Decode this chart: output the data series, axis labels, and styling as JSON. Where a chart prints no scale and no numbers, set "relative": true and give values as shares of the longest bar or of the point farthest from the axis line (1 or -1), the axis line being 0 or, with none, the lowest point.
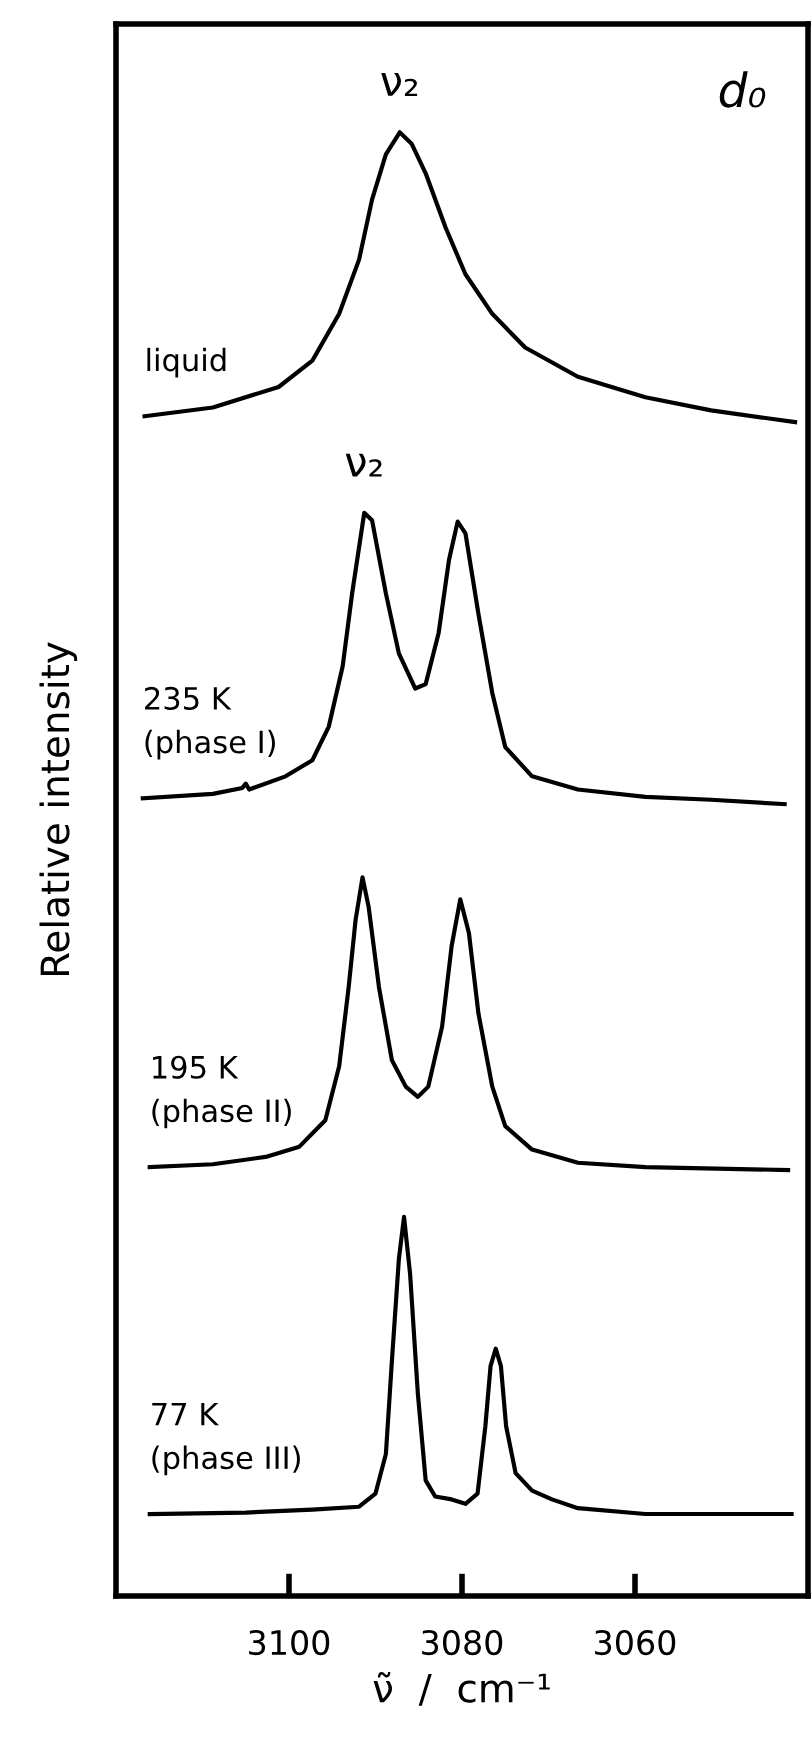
{
  "chart_data": {
    "type": "line",
    "relative": true,
    "xlabel": "ν̃  /  cm⁻¹",
    "ylabel": "Relative intensity",
    "xlim": [
      3120,
      3040
    ],
    "xticks": [
      3100,
      3080,
      3060
    ],
    "tick_labels": "x",
    "grid": false,
    "legend": false,
    "annotations": [
      {
        "text": "ν₂",
        "x": 3087.2,
        "y": 1.0
      },
      {
        "text": "ν₂",
        "x": 3091.3,
        "y": 0.74
      },
      "d₀"
    ],
    "series": [
      {
        "name": "liquid",
        "color": "#000000",
        "x": [
          3116.7,
          3108.8,
          3101.2,
          3097.3,
          3094.2,
          3091.9,
          3090.4,
          3088.8,
          3087.2,
          3085.8,
          3084.2,
          3081.9,
          3079.6,
          3076.5,
          3072.7,
          3066.6,
          3058.8,
          3051.2,
          3041.5
        ],
        "values": [
          0.806,
          0.812,
          0.826,
          0.844,
          0.876,
          0.913,
          0.954,
          0.985,
          1.0,
          0.992,
          0.972,
          0.935,
          0.903,
          0.876,
          0.853,
          0.833,
          0.819,
          0.81,
          0.802
        ]
      },
      {
        "name": "235 K\n(phase I)",
        "color": "#000000",
        "x": [
          3116.9,
          3108.8,
          3105.4,
          3105.0,
          3104.6,
          3100.4,
          3097.3,
          3095.4,
          3093.8,
          3092.7,
          3091.3,
          3090.4,
          3088.8,
          3087.3,
          3085.4,
          3084.2,
          3082.7,
          3081.5,
          3080.5,
          3079.6,
          3078.1,
          3076.5,
          3075.0,
          3071.9,
          3066.6,
          3058.8,
          3051.2,
          3042.7
        ],
        "values": [
          0.545,
          0.548,
          0.552,
          0.555,
          0.551,
          0.56,
          0.571,
          0.594,
          0.635,
          0.685,
          0.74,
          0.735,
          0.685,
          0.644,
          0.62,
          0.623,
          0.658,
          0.708,
          0.734,
          0.726,
          0.671,
          0.617,
          0.58,
          0.56,
          0.551,
          0.546,
          0.544,
          0.541
        ]
      },
      {
        "name": "195 K\n(phase II)",
        "color": "#000000",
        "x": [
          3116.1,
          3108.8,
          3102.7,
          3098.8,
          3095.8,
          3094.2,
          3093.1,
          3092.3,
          3091.5,
          3090.8,
          3089.6,
          3088.1,
          3086.5,
          3085.1,
          3083.9,
          3082.3,
          3081.2,
          3080.2,
          3079.2,
          3078.1,
          3076.5,
          3075.0,
          3071.9,
          3066.6,
          3058.8,
          3042.3
        ],
        "values": [
          0.293,
          0.295,
          0.3,
          0.307,
          0.325,
          0.362,
          0.416,
          0.462,
          0.491,
          0.471,
          0.416,
          0.366,
          0.348,
          0.341,
          0.348,
          0.389,
          0.444,
          0.476,
          0.453,
          0.398,
          0.348,
          0.321,
          0.305,
          0.296,
          0.293,
          0.291
        ]
      },
      {
        "name": "77 K\n(phase III)",
        "color": "#000000",
        "x": [
          3116.1,
          3105.0,
          3097.3,
          3091.9,
          3090.0,
          3088.8,
          3088.1,
          3087.3,
          3086.7,
          3086.0,
          3085.1,
          3084.2,
          3083.1,
          3081.2,
          3079.6,
          3078.2,
          3077.3,
          3076.7,
          3076.1,
          3075.5,
          3074.9,
          3073.8,
          3071.9,
          3069.6,
          3066.6,
          3058.8,
          3041.9
        ],
        "values": [
          0.056,
          0.057,
          0.059,
          0.061,
          0.07,
          0.097,
          0.161,
          0.23,
          0.259,
          0.22,
          0.138,
          0.079,
          0.068,
          0.066,
          0.063,
          0.07,
          0.116,
          0.157,
          0.169,
          0.157,
          0.116,
          0.084,
          0.072,
          0.066,
          0.06,
          0.056,
          0.056
        ]
      }
    ]
  }
}
